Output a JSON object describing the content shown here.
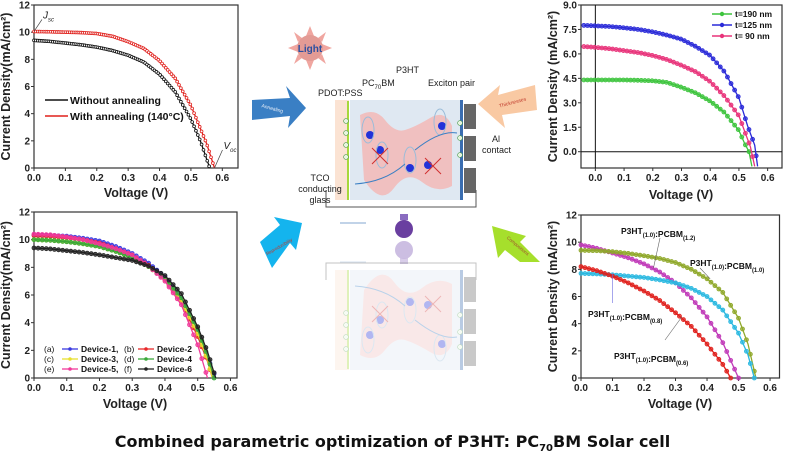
{
  "title": {
    "before": "Combined parametric optimization of P3HT: PC",
    "sub": "70",
    "after": "BM Solar cell"
  },
  "diagram": {
    "light": "Light",
    "pdot": "PDOT:PSS",
    "pcbm": "PC70BM",
    "p3ht": "P3HT",
    "exciton": "Exciton pair",
    "al_contact": [
      "Al",
      "contact"
    ],
    "tco": [
      "TCO",
      "conducting",
      "glass"
    ],
    "arrows": {
      "annealing": {
        "label": "Annealing",
        "color": "#3a7fc4"
      },
      "thicknesses": {
        "label": "Thicknesses",
        "color": "#f9c9a3"
      },
      "reproducibility": {
        "label": "Reproducibility",
        "color": "#14b4ee"
      },
      "compositions": {
        "label": "Compositions",
        "color": "#a6df2c"
      }
    }
  },
  "chart_data": [
    {
      "type": "line",
      "xlabel": "Voltage (V)",
      "ylabel": "Current Density(mA/cm²)",
      "xlim": [
        0,
        0.65
      ],
      "ylim": [
        0,
        12
      ],
      "xticks": [
        0.0,
        0.1,
        0.2,
        0.3,
        0.4,
        0.5,
        0.6
      ],
      "yticks": [
        0,
        2,
        4,
        6,
        8,
        10,
        12
      ],
      "xtick_decimals": 1,
      "ytick_decimals": 0,
      "legend": "center-left",
      "annotations": [
        {
          "text": "J",
          "sub": "sc",
          "at": [
            0,
            10.05
          ]
        },
        {
          "text": "V",
          "sub": "oc",
          "at": [
            0.575,
            0
          ]
        }
      ],
      "series": [
        {
          "name": "Without annealing",
          "color": "#111111",
          "points": [
            [
              0,
              9.4
            ],
            [
              0.05,
              9.32
            ],
            [
              0.1,
              9.2
            ],
            [
              0.15,
              9.07
            ],
            [
              0.2,
              8.9
            ],
            [
              0.25,
              8.65
            ],
            [
              0.3,
              8.3
            ],
            [
              0.35,
              7.8
            ],
            [
              0.4,
              6.9
            ],
            [
              0.45,
              5.6
            ],
            [
              0.5,
              3.6
            ],
            [
              0.53,
              2.0
            ],
            [
              0.56,
              0
            ]
          ]
        },
        {
          "name": "With annealing (140°C)",
          "color": "#e0201c",
          "points": [
            [
              0,
              10.05
            ],
            [
              0.05,
              10.03
            ],
            [
              0.1,
              10.0
            ],
            [
              0.15,
              9.97
            ],
            [
              0.2,
              9.9
            ],
            [
              0.25,
              9.7
            ],
            [
              0.3,
              9.3
            ],
            [
              0.35,
              8.8
            ],
            [
              0.4,
              7.9
            ],
            [
              0.45,
              6.6
            ],
            [
              0.5,
              4.6
            ],
            [
              0.55,
              1.8
            ],
            [
              0.575,
              0
            ]
          ]
        }
      ]
    },
    {
      "type": "line",
      "xlabel": "Voltage (V)",
      "ylabel": "Current Density (mA/cm²)",
      "xlim": [
        -0.05,
        0.65
      ],
      "ylim": [
        -1,
        9
      ],
      "xticks": [
        0.0,
        0.1,
        0.2,
        0.3,
        0.4,
        0.5,
        0.6
      ],
      "yticks": [
        0.0,
        1.5,
        3.0,
        4.5,
        6.0,
        7.5,
        9.0
      ],
      "xtick_decimals": 1,
      "ytick_decimals": 1,
      "legend": "top-right",
      "series": [
        {
          "name": "t=190 nm",
          "color": "#3dc43d",
          "points": [
            [
              -0.04,
              4.4
            ],
            [
              0,
              4.4
            ],
            [
              0.05,
              4.4
            ],
            [
              0.1,
              4.4
            ],
            [
              0.15,
              4.38
            ],
            [
              0.2,
              4.35
            ],
            [
              0.25,
              4.25
            ],
            [
              0.3,
              3.95
            ],
            [
              0.35,
              3.6
            ],
            [
              0.4,
              3.1
            ],
            [
              0.45,
              2.4
            ],
            [
              0.5,
              1.3
            ],
            [
              0.52,
              0.5
            ],
            [
              0.535,
              0
            ],
            [
              0.545,
              -0.9
            ]
          ]
        },
        {
          "name": "t=125 nm",
          "color": "#2a2ad8",
          "points": [
            [
              -0.04,
              7.75
            ],
            [
              0,
              7.72
            ],
            [
              0.05,
              7.68
            ],
            [
              0.1,
              7.6
            ],
            [
              0.15,
              7.5
            ],
            [
              0.2,
              7.35
            ],
            [
              0.25,
              7.15
            ],
            [
              0.3,
              6.9
            ],
            [
              0.35,
              6.45
            ],
            [
              0.4,
              5.9
            ],
            [
              0.45,
              4.9
            ],
            [
              0.5,
              3.3
            ],
            [
              0.53,
              1.6
            ],
            [
              0.555,
              0.4
            ],
            [
              0.565,
              -0.9
            ]
          ]
        },
        {
          "name": "t= 90 nm",
          "color": "#e8337a",
          "points": [
            [
              -0.04,
              6.45
            ],
            [
              0,
              6.4
            ],
            [
              0.05,
              6.32
            ],
            [
              0.1,
              6.2
            ],
            [
              0.15,
              6.08
            ],
            [
              0.2,
              5.9
            ],
            [
              0.25,
              5.65
            ],
            [
              0.3,
              5.3
            ],
            [
              0.35,
              4.9
            ],
            [
              0.4,
              4.3
            ],
            [
              0.45,
              3.4
            ],
            [
              0.5,
              2.2
            ],
            [
              0.54,
              0.3
            ],
            [
              0.555,
              -0.9
            ]
          ]
        }
      ]
    },
    {
      "type": "line",
      "xlabel": "Voltage (V)",
      "ylabel": "Current Density(mA/cm²)",
      "xlim": [
        0,
        0.62
      ],
      "ylim": [
        0,
        12
      ],
      "xticks": [
        0.0,
        0.1,
        0.2,
        0.3,
        0.4,
        0.5,
        0.6
      ],
      "yticks": [
        0,
        2,
        4,
        6,
        8,
        10,
        12
      ],
      "xtick_decimals": 1,
      "ytick_decimals": 0,
      "legend": "bottom-left",
      "series": [
        {
          "letter": "(a)",
          "name": "Device-1",
          "color": "#3a3ae0",
          "points": [
            [
              0,
              10.35
            ],
            [
              0.05,
              10.32
            ],
            [
              0.1,
              10.25
            ],
            [
              0.15,
              10.1
            ],
            [
              0.2,
              9.9
            ],
            [
              0.25,
              9.5
            ],
            [
              0.3,
              9.0
            ],
            [
              0.35,
              8.3
            ],
            [
              0.4,
              7.3
            ],
            [
              0.45,
              5.8
            ],
            [
              0.5,
              3.4
            ],
            [
              0.53,
              1.5
            ],
            [
              0.555,
              0
            ]
          ]
        },
        {
          "letter": "(b)",
          "name": "Device-2",
          "color": "#e8282a",
          "points": [
            [
              0,
              10.3
            ],
            [
              0.05,
              10.25
            ],
            [
              0.1,
              10.15
            ],
            [
              0.15,
              10.0
            ],
            [
              0.2,
              9.75
            ],
            [
              0.25,
              9.35
            ],
            [
              0.3,
              8.85
            ],
            [
              0.35,
              8.15
            ],
            [
              0.4,
              7.1
            ],
            [
              0.45,
              5.5
            ],
            [
              0.5,
              3.0
            ],
            [
              0.53,
              1.2
            ],
            [
              0.545,
              0
            ]
          ]
        },
        {
          "letter": "(c)",
          "name": "Device-3",
          "color": "#e8e030",
          "points": [
            [
              0,
              10.0
            ],
            [
              0.05,
              9.95
            ],
            [
              0.1,
              9.85
            ],
            [
              0.15,
              9.7
            ],
            [
              0.2,
              9.5
            ],
            [
              0.25,
              9.15
            ],
            [
              0.3,
              8.7
            ],
            [
              0.35,
              8.05
            ],
            [
              0.4,
              7.1
            ],
            [
              0.45,
              5.6
            ],
            [
              0.5,
              3.2
            ],
            [
              0.53,
              1.3
            ],
            [
              0.545,
              0
            ]
          ]
        },
        {
          "letter": "(d)",
          "name": "Device-4",
          "color": "#3aa83a",
          "points": [
            [
              0,
              10.0
            ],
            [
              0.05,
              9.95
            ],
            [
              0.1,
              9.85
            ],
            [
              0.15,
              9.7
            ],
            [
              0.2,
              9.5
            ],
            [
              0.25,
              9.15
            ],
            [
              0.3,
              8.7
            ],
            [
              0.35,
              8.05
            ],
            [
              0.4,
              7.15
            ],
            [
              0.45,
              5.8
            ],
            [
              0.5,
              3.5
            ],
            [
              0.53,
              1.6
            ],
            [
              0.55,
              0
            ]
          ]
        },
        {
          "letter": "(e)",
          "name": "Device-5",
          "color": "#f03a9a",
          "points": [
            [
              0,
              10.4
            ],
            [
              0.05,
              10.35
            ],
            [
              0.1,
              10.2
            ],
            [
              0.15,
              10.0
            ],
            [
              0.2,
              9.7
            ],
            [
              0.25,
              9.35
            ],
            [
              0.3,
              8.9
            ],
            [
              0.35,
              8.1
            ],
            [
              0.4,
              7.0
            ],
            [
              0.45,
              5.3
            ],
            [
              0.5,
              2.4
            ],
            [
              0.53,
              0
            ]
          ]
        },
        {
          "letter": "(f)",
          "name": "Device-6",
          "color": "#222222",
          "points": [
            [
              0,
              9.4
            ],
            [
              0.05,
              9.33
            ],
            [
              0.1,
              9.2
            ],
            [
              0.15,
              9.07
            ],
            [
              0.2,
              8.9
            ],
            [
              0.25,
              8.7
            ],
            [
              0.3,
              8.5
            ],
            [
              0.35,
              8.1
            ],
            [
              0.4,
              7.4
            ],
            [
              0.45,
              6.1
            ],
            [
              0.5,
              3.7
            ],
            [
              0.53,
              1.9
            ],
            [
              0.555,
              0
            ]
          ]
        }
      ]
    },
    {
      "type": "line",
      "xlabel": "Voltage (V)",
      "ylabel": "Current Density (mA/cm²)",
      "xlim": [
        0,
        0.63
      ],
      "ylim": [
        0,
        12
      ],
      "xticks": [
        0.0,
        0.1,
        0.2,
        0.3,
        0.4,
        0.5,
        0.6
      ],
      "yticks": [
        0,
        2,
        4,
        6,
        8,
        10,
        12
      ],
      "xtick_decimals": 1,
      "ytick_decimals": 0,
      "legend": "inline-labels",
      "series": [
        {
          "name": "P3HT(1.0):PCBM(1.2)",
          "color": "#c03ab8",
          "points": [
            [
              0,
              9.8
            ],
            [
              0.05,
              9.55
            ],
            [
              0.1,
              9.2
            ],
            [
              0.15,
              8.85
            ],
            [
              0.2,
              8.4
            ],
            [
              0.25,
              7.8
            ],
            [
              0.3,
              7.0
            ],
            [
              0.35,
              5.9
            ],
            [
              0.4,
              4.5
            ],
            [
              0.45,
              2.6
            ],
            [
              0.5,
              0
            ]
          ]
        },
        {
          "name": "P3HT(1.0):PCBM(1.0)",
          "color": "#8fa82a",
          "points": [
            [
              0,
              9.4
            ],
            [
              0.05,
              9.37
            ],
            [
              0.1,
              9.3
            ],
            [
              0.15,
              9.17
            ],
            [
              0.2,
              9.0
            ],
            [
              0.25,
              8.8
            ],
            [
              0.3,
              8.5
            ],
            [
              0.35,
              8.0
            ],
            [
              0.4,
              7.3
            ],
            [
              0.45,
              6.3
            ],
            [
              0.5,
              4.4
            ],
            [
              0.53,
              2.5
            ],
            [
              0.555,
              0
            ]
          ]
        },
        {
          "name": "P3HT(1.0):PCBM(0.8)",
          "color": "#2ab8e0",
          "points": [
            [
              0,
              7.7
            ],
            [
              0.05,
              7.66
            ],
            [
              0.1,
              7.6
            ],
            [
              0.15,
              7.5
            ],
            [
              0.2,
              7.4
            ],
            [
              0.25,
              7.22
            ],
            [
              0.3,
              7.0
            ],
            [
              0.35,
              6.6
            ],
            [
              0.4,
              6.0
            ],
            [
              0.45,
              5.0
            ],
            [
              0.5,
              3.3
            ],
            [
              0.53,
              1.7
            ],
            [
              0.55,
              0
            ]
          ]
        },
        {
          "name": "P3HT(1.0):PCBM(0.6)",
          "color": "#e0201c",
          "points": [
            [
              0,
              8.2
            ],
            [
              0.05,
              7.9
            ],
            [
              0.1,
              7.5
            ],
            [
              0.15,
              7.0
            ],
            [
              0.2,
              6.4
            ],
            [
              0.25,
              5.7
            ],
            [
              0.3,
              4.8
            ],
            [
              0.35,
              3.8
            ],
            [
              0.4,
              2.5
            ],
            [
              0.45,
              1.0
            ],
            [
              0.475,
              0
            ]
          ]
        }
      ]
    }
  ]
}
